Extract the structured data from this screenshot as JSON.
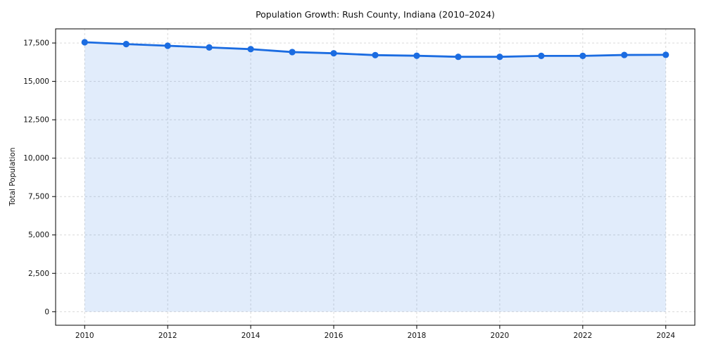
{
  "chart_data": {
    "type": "area",
    "title": "Population Growth: Rush County, Indiana (2010–2024)",
    "xlabel": "",
    "ylabel": "Total Population",
    "x": [
      2010,
      2011,
      2012,
      2013,
      2014,
      2015,
      2016,
      2017,
      2018,
      2019,
      2020,
      2021,
      2022,
      2023,
      2024
    ],
    "series": [
      {
        "name": "Total Population",
        "values": [
          17550,
          17430,
          17320,
          17210,
          17100,
          16910,
          16830,
          16710,
          16670,
          16600,
          16600,
          16660,
          16660,
          16720,
          16730
        ]
      }
    ],
    "x_ticks": [
      2010,
      2012,
      2014,
      2016,
      2018,
      2020,
      2022,
      2024
    ],
    "y_ticks": [
      0,
      2500,
      5000,
      7500,
      10000,
      12500,
      15000,
      17500
    ],
    "xlim": [
      2009.3,
      2024.7
    ],
    "ylim": [
      -880,
      18420
    ],
    "fill_baseline": 0,
    "grid": true,
    "grid_style": "dashed",
    "legend": false,
    "colors": {
      "line": "#1b6ce1",
      "marker": "#1b6ce1",
      "fill": "#1b6ce1",
      "fill_opacity": 0.13,
      "grid": "#d9d9d9",
      "spine": "#000000",
      "text": "#111111",
      "background": "#ffffff"
    }
  }
}
